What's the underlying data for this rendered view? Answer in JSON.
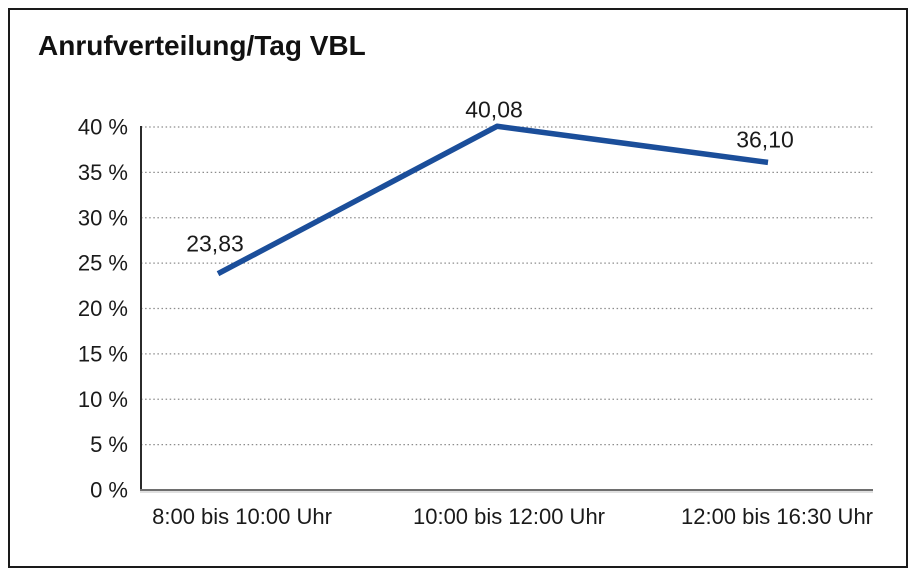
{
  "title": "Anrufverteilung/Tag VBL",
  "colors": {
    "line": "#1b4e9a",
    "grid_dots": "#8c8c8c",
    "y_axis": "#2b2b2b",
    "baseline_dark": "#6e6e6e",
    "baseline_light": "#c2c2c2",
    "frame": "#1a1a1a",
    "text": "#1a1a1a"
  },
  "chart_data": {
    "type": "line",
    "title": "Anrufverteilung/Tag VBL",
    "categories": [
      "8:00 bis 10:00 Uhr",
      "10:00 bis 12:00 Uhr",
      "12:00 bis 16:30 Uhr"
    ],
    "values": [
      23.83,
      40.08,
      36.1
    ],
    "point_labels": [
      "23,83",
      "40,08",
      "36,10"
    ],
    "yticks": [
      0,
      5,
      10,
      15,
      20,
      25,
      30,
      35,
      40
    ],
    "ytick_labels": [
      "0 %",
      "5 %",
      "10 %",
      "15 %",
      "20 %",
      "25 %",
      "30 %",
      "35 %",
      "40 %"
    ],
    "ylim": [
      0,
      40
    ],
    "xlabel": "",
    "ylabel": "",
    "grid": "horizontal-dotted",
    "legend": "none"
  }
}
